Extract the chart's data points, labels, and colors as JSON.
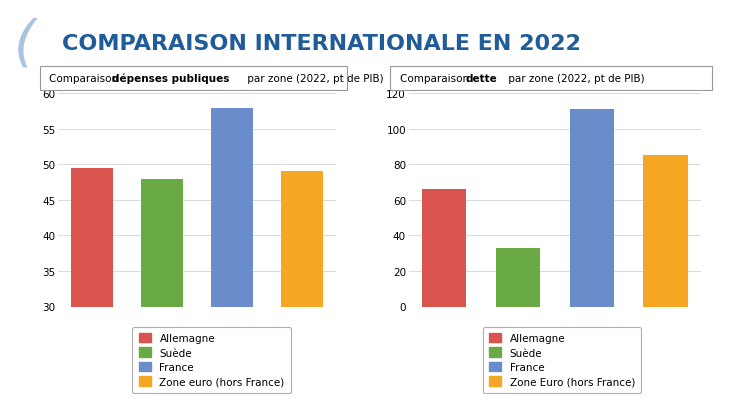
{
  "title": "COMPARAISON INTERNATIONALE EN 2022",
  "title_color": "#1f5c99",
  "title_fontsize": 16,
  "chart1": {
    "values": [
      49.5,
      48.0,
      58.0,
      49.0
    ],
    "colors": [
      "#d9534f",
      "#6aaa45",
      "#6b8cca",
      "#f5a623"
    ],
    "ylim": [
      30,
      60
    ],
    "yticks": [
      30,
      35,
      40,
      45,
      50,
      55,
      60
    ],
    "sub_plain1": "Comparaison ",
    "sub_bold": "dépenses publiques",
    "sub_plain2": " par zone (2022, pt de PIB)"
  },
  "chart2": {
    "values": [
      66.0,
      33.0,
      111.0,
      85.0
    ],
    "colors": [
      "#d9534f",
      "#6aaa45",
      "#6b8cca",
      "#f5a623"
    ],
    "ylim": [
      0,
      120
    ],
    "yticks": [
      0,
      20,
      40,
      60,
      80,
      100,
      120
    ],
    "sub_plain1": "Comparaison ",
    "sub_bold": "dette",
    "sub_plain2": " par zone (2022, pt de PIB)"
  },
  "legend1": [
    "Allemagne",
    "Suède",
    "France",
    "Zone euro (hors France)"
  ],
  "legend2": [
    "Allemagne",
    "Suède",
    "France",
    "Zone Euro (hors France)"
  ],
  "bar_colors": [
    "#d9534f",
    "#6aaa45",
    "#6b8cca",
    "#f5a623"
  ],
  "background_color": "#ffffff",
  "grid_color": "#cccccc",
  "border_color": "#999999"
}
